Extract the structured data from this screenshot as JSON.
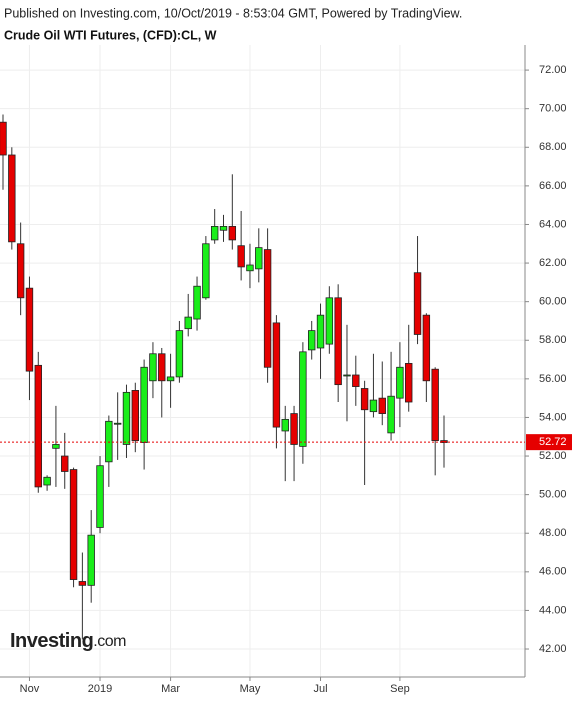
{
  "chart_data": {
    "type": "candlestick",
    "published": "Published on Investing.com, 10/Oct/2019 - 8:53:04 GMT, Powered by TradingView.",
    "title": "Crude Oil WTI Futures, (CFD):CL, W",
    "logo": {
      "name": "Investing",
      "suffix": ".com"
    },
    "categories": [
      null,
      null,
      null,
      "Nov",
      null,
      null,
      null,
      null,
      null,
      null,
      null,
      "2019",
      null,
      null,
      null,
      null,
      null,
      null,
      null,
      "Mar",
      null,
      null,
      null,
      null,
      null,
      null,
      null,
      null,
      "May",
      null,
      null,
      null,
      null,
      null,
      null,
      null,
      "Jul",
      null,
      null,
      null,
      null,
      null,
      null,
      null,
      null,
      "Sep",
      null,
      null,
      null,
      null,
      null
    ],
    "open": [
      69.3,
      67.6,
      63.0,
      60.7,
      56.7,
      50.5,
      52.4,
      52.0,
      51.3,
      45.5,
      45.3,
      48.3,
      51.7,
      53.7,
      52.6,
      55.4,
      52.7,
      55.9,
      57.3,
      55.9,
      56.1,
      58.6,
      59.1,
      60.2,
      63.2,
      63.7,
      63.9,
      62.9,
      61.6,
      61.7,
      62.7,
      58.9,
      53.3,
      54.2,
      52.5,
      57.5,
      57.6,
      57.8,
      60.2,
      56.2,
      56.2,
      55.5,
      54.3,
      55.0,
      53.2,
      55.0,
      56.8,
      61.5,
      59.3,
      56.5,
      52.8
    ],
    "high": [
      69.7,
      68.0,
      64.1,
      61.3,
      57.4,
      51.0,
      54.6,
      53.2,
      51.4,
      47.0,
      49.2,
      52.0,
      54.1,
      55.3,
      55.7,
      55.8,
      57.0,
      57.9,
      57.6,
      57.3,
      59.0,
      60.4,
      61.3,
      63.4,
      64.8,
      64.5,
      66.6,
      64.7,
      63.0,
      63.8,
      63.8,
      59.3,
      54.6,
      54.6,
      57.9,
      59.0,
      59.9,
      60.8,
      60.9,
      58.8,
      57.2,
      55.9,
      57.3,
      56.9,
      57.4,
      57.9,
      58.8,
      63.4,
      59.4,
      56.6,
      54.1
    ],
    "low": [
      65.8,
      62.7,
      59.3,
      54.9,
      50.1,
      50.2,
      50.4,
      50.3,
      45.2,
      42.5,
      44.4,
      48.0,
      50.4,
      51.8,
      51.9,
      52.2,
      51.3,
      55.0,
      54.0,
      54.5,
      55.8,
      58.2,
      58.5,
      60.1,
      63.0,
      63.1,
      62.7,
      61.1,
      60.7,
      61.0,
      55.8,
      52.4,
      50.7,
      50.7,
      51.6,
      57.0,
      56.0,
      57.3,
      54.8,
      53.8,
      54.6,
      50.5,
      54.0,
      53.6,
      52.8,
      53.5,
      54.3,
      57.8,
      54.8,
      51.0,
      51.4
    ],
    "close": [
      67.6,
      63.1,
      60.2,
      56.4,
      50.4,
      50.9,
      52.6,
      51.2,
      45.6,
      45.3,
      47.9,
      51.5,
      53.8,
      53.7,
      55.3,
      52.8,
      56.6,
      57.3,
      55.9,
      56.1,
      58.5,
      59.2,
      60.8,
      63.0,
      63.9,
      63.9,
      63.2,
      61.8,
      61.9,
      62.8,
      56.6,
      53.5,
      53.9,
      52.6,
      57.4,
      58.5,
      59.3,
      60.2,
      55.7,
      56.2,
      55.6,
      54.4,
      54.9,
      54.2,
      55.1,
      56.6,
      54.8,
      58.3,
      55.9,
      52.8,
      52.7
    ],
    "up_color": "#1aee1a",
    "down_color": "#e50000",
    "last_price": 52.72,
    "last_price_color": "#e50000",
    "ylim": [
      40.55,
      73.3
    ],
    "yticks": [
      {
        "value": 42,
        "label": "42.00"
      },
      {
        "value": 44,
        "label": "44.00"
      },
      {
        "value": 46,
        "label": "46.00"
      },
      {
        "value": 48,
        "label": "48.00"
      },
      {
        "value": 50,
        "label": "50.00"
      },
      {
        "value": 52,
        "label": "52.00"
      },
      {
        "value": 54,
        "label": "54.00"
      },
      {
        "value": 56,
        "label": "56.00"
      },
      {
        "value": 58,
        "label": "58.00"
      },
      {
        "value": 60,
        "label": "60.00"
      },
      {
        "value": 62,
        "label": "62.00"
      },
      {
        "value": 64,
        "label": "64.00"
      },
      {
        "value": 66,
        "label": "66.00"
      },
      {
        "value": 68,
        "label": "68.00"
      },
      {
        "value": 70,
        "label": "70.00"
      },
      {
        "value": 72,
        "label": "72.00"
      }
    ],
    "grid": true
  }
}
